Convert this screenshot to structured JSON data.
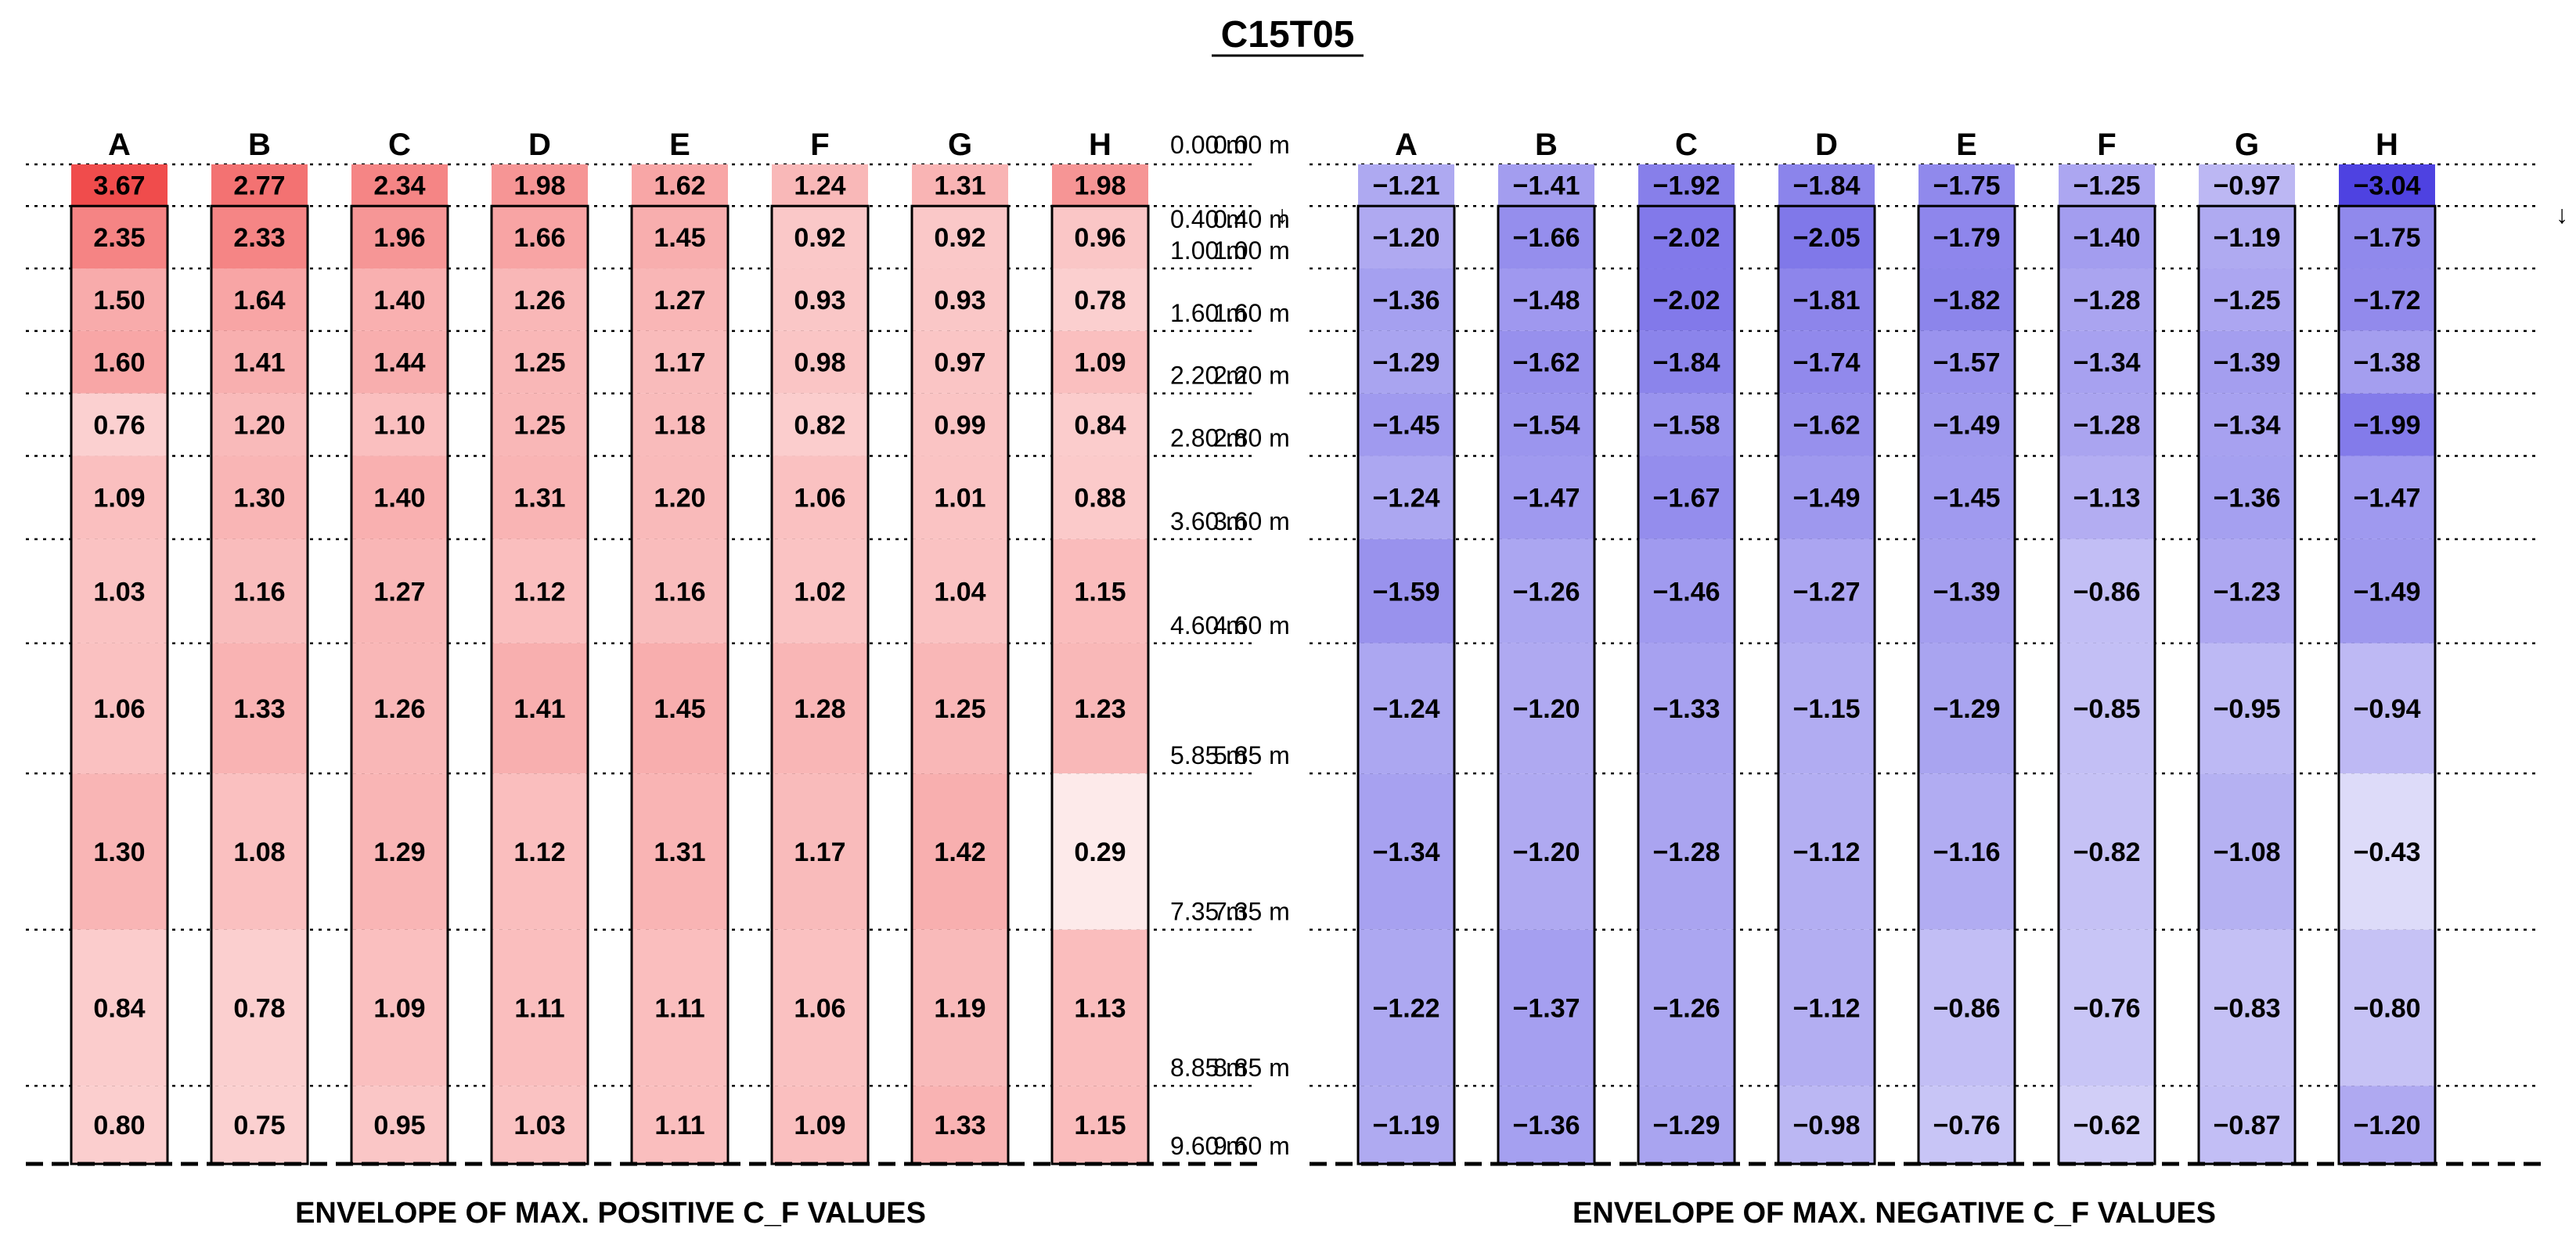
{
  "title": "C15T05",
  "chart_data": [
    {
      "type": "heatmap",
      "caption": "ENVELOPE OF MAX. POSITIVE C_F VALUES",
      "columns": [
        "A",
        "B",
        "C",
        "D",
        "E",
        "F",
        "G",
        "H"
      ],
      "height_labels": [
        "0.00 m",
        "0.40 m",
        "1.00 m",
        "1.60 m",
        "2.20 m",
        "2.80 m",
        "3.60 m",
        "4.60 m",
        "5.85 m",
        "7.35 m",
        "8.85 m",
        "9.60 m"
      ],
      "color": "#f04848",
      "max_abs": 3.67,
      "values": [
        [
          3.67,
          2.77,
          2.34,
          1.98,
          1.62,
          1.24,
          1.31,
          1.98
        ],
        [
          2.35,
          2.33,
          1.96,
          1.66,
          1.45,
          0.92,
          0.92,
          0.96
        ],
        [
          1.5,
          1.64,
          1.4,
          1.26,
          1.27,
          0.93,
          0.93,
          0.78
        ],
        [
          1.6,
          1.41,
          1.44,
          1.25,
          1.17,
          0.98,
          0.97,
          1.09
        ],
        [
          0.76,
          1.2,
          1.1,
          1.25,
          1.18,
          0.82,
          0.99,
          0.84
        ],
        [
          1.09,
          1.3,
          1.4,
          1.31,
          1.2,
          1.06,
          1.01,
          0.88
        ],
        [
          1.03,
          1.16,
          1.27,
          1.12,
          1.16,
          1.02,
          1.04,
          1.15
        ],
        [
          1.06,
          1.33,
          1.26,
          1.41,
          1.45,
          1.28,
          1.25,
          1.23
        ],
        [
          1.3,
          1.08,
          1.29,
          1.12,
          1.31,
          1.17,
          1.42,
          0.29
        ],
        [
          0.84,
          0.78,
          1.09,
          1.11,
          1.11,
          1.06,
          1.19,
          1.13
        ],
        [
          0.8,
          0.75,
          0.95,
          1.03,
          1.11,
          1.09,
          1.33,
          1.15
        ]
      ]
    },
    {
      "type": "heatmap",
      "caption": "ENVELOPE OF MAX. NEGATIVE C_F VALUES",
      "columns": [
        "A",
        "B",
        "C",
        "D",
        "E",
        "F",
        "G",
        "H"
      ],
      "height_labels": [
        "0.00 m",
        "0.40 m",
        "1.00 m",
        "1.60 m",
        "2.20 m",
        "2.80 m",
        "3.60 m",
        "4.60 m",
        "5.85 m",
        "7.35 m",
        "8.85 m",
        "9.60 m"
      ],
      "color": "#4a3ee0",
      "max_abs": 3.04,
      "values": [
        [
          -1.21,
          -1.41,
          -1.92,
          -1.84,
          -1.75,
          -1.25,
          -0.97,
          -3.04
        ],
        [
          -1.2,
          -1.66,
          -2.02,
          -2.05,
          -1.79,
          -1.4,
          -1.19,
          -1.75
        ],
        [
          -1.36,
          -1.48,
          -2.02,
          -1.81,
          -1.82,
          -1.28,
          -1.25,
          -1.72
        ],
        [
          -1.29,
          -1.62,
          -1.84,
          -1.74,
          -1.57,
          -1.34,
          -1.39,
          -1.38
        ],
        [
          -1.45,
          -1.54,
          -1.58,
          -1.62,
          -1.49,
          -1.28,
          -1.34,
          -1.99
        ],
        [
          -1.24,
          -1.47,
          -1.67,
          -1.49,
          -1.45,
          -1.13,
          -1.36,
          -1.47
        ],
        [
          -1.59,
          -1.26,
          -1.46,
          -1.27,
          -1.39,
          -0.86,
          -1.23,
          -1.49
        ],
        [
          -1.24,
          -1.2,
          -1.33,
          -1.15,
          -1.29,
          -0.85,
          -0.95,
          -0.94
        ],
        [
          -1.34,
          -1.2,
          -1.28,
          -1.12,
          -1.16,
          -0.82,
          -1.08,
          -0.43
        ],
        [
          -1.22,
          -1.37,
          -1.26,
          -1.12,
          -0.86,
          -0.76,
          -0.83,
          -0.8
        ],
        [
          -1.19,
          -1.36,
          -1.29,
          -0.98,
          -0.76,
          -0.62,
          -0.87,
          -1.2
        ]
      ]
    }
  ]
}
